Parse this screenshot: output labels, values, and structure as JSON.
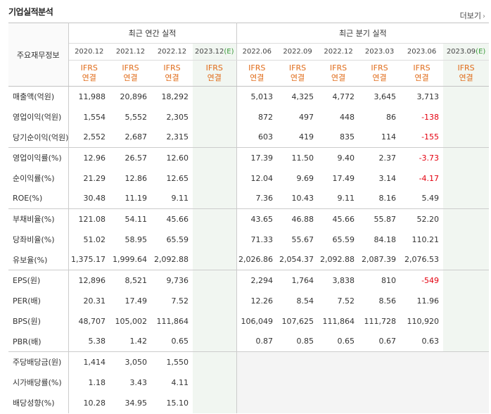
{
  "section_title": "기업실적분석",
  "more_link": "더보기",
  "row_header": "주요재무정보",
  "annual_group_label": "최근 연간 실적",
  "quarterly_group_label": "최근 분기 실적",
  "ifrs_label": "IFRS",
  "consolidated_label": "연결",
  "annual_periods": [
    {
      "label": "2020.12",
      "estimate": false
    },
    {
      "label": "2021.12",
      "estimate": false
    },
    {
      "label": "2022.12",
      "estimate": false
    },
    {
      "label": "2023.12",
      "estimate": true,
      "e_mark": "(E)"
    }
  ],
  "quarterly_periods": [
    {
      "label": "2022.06",
      "estimate": false
    },
    {
      "label": "2022.09",
      "estimate": false
    },
    {
      "label": "2022.12",
      "estimate": false
    },
    {
      "label": "2023.03",
      "estimate": false
    },
    {
      "label": "2023.06",
      "estimate": false
    },
    {
      "label": "2023.09",
      "estimate": true,
      "e_mark": "(E)"
    }
  ],
  "rows": [
    {
      "label": "매출액(억원)",
      "annual": [
        "11,988",
        "20,896",
        "18,292",
        ""
      ],
      "quarterly": [
        "5,013",
        "4,325",
        "4,772",
        "3,645",
        "3,713",
        ""
      ],
      "group_start": true
    },
    {
      "label": "영업이익(억원)",
      "annual": [
        "1,554",
        "5,552",
        "2,305",
        ""
      ],
      "quarterly": [
        "872",
        "497",
        "448",
        "86",
        "-138",
        ""
      ]
    },
    {
      "label": "당기순이익(억원)",
      "annual": [
        "2,552",
        "2,687",
        "2,315",
        ""
      ],
      "quarterly": [
        "603",
        "419",
        "835",
        "114",
        "-155",
        ""
      ]
    },
    {
      "label": "영업이익률(%)",
      "annual": [
        "12.96",
        "26.57",
        "12.60",
        ""
      ],
      "quarterly": [
        "17.39",
        "11.50",
        "9.40",
        "2.37",
        "-3.73",
        ""
      ],
      "group_start": true
    },
    {
      "label": "순이익률(%)",
      "annual": [
        "21.29",
        "12.86",
        "12.65",
        ""
      ],
      "quarterly": [
        "12.04",
        "9.69",
        "17.49",
        "3.14",
        "-4.17",
        ""
      ]
    },
    {
      "label": "ROE(%)",
      "annual": [
        "30.48",
        "11.19",
        "9.11",
        ""
      ],
      "quarterly": [
        "7.36",
        "10.43",
        "9.11",
        "8.16",
        "5.49",
        ""
      ]
    },
    {
      "label": "부채비율(%)",
      "annual": [
        "121.08",
        "54.11",
        "45.66",
        ""
      ],
      "quarterly": [
        "43.65",
        "46.88",
        "45.66",
        "55.87",
        "52.20",
        ""
      ],
      "group_start": true
    },
    {
      "label": "당좌비율(%)",
      "annual": [
        "51.02",
        "58.95",
        "65.59",
        ""
      ],
      "quarterly": [
        "71.33",
        "55.67",
        "65.59",
        "84.18",
        "110.21",
        ""
      ]
    },
    {
      "label": "유보율(%)",
      "annual": [
        "1,375.17",
        "1,999.64",
        "2,092.88",
        ""
      ],
      "quarterly": [
        "2,026.86",
        "2,054.37",
        "2,092.88",
        "2,087.39",
        "2,076.53",
        ""
      ]
    },
    {
      "label": "EPS(원)",
      "annual": [
        "12,896",
        "8,521",
        "9,736",
        ""
      ],
      "quarterly": [
        "2,294",
        "1,764",
        "3,838",
        "810",
        "-549",
        ""
      ],
      "group_start": true
    },
    {
      "label": "PER(배)",
      "annual": [
        "20.31",
        "17.49",
        "7.52",
        ""
      ],
      "quarterly": [
        "12.26",
        "8.54",
        "7.52",
        "8.56",
        "11.96",
        ""
      ]
    },
    {
      "label": "BPS(원)",
      "annual": [
        "48,707",
        "105,002",
        "111,864",
        ""
      ],
      "quarterly": [
        "106,049",
        "107,625",
        "111,864",
        "111,728",
        "110,920",
        ""
      ]
    },
    {
      "label": "PBR(배)",
      "annual": [
        "5.38",
        "1.42",
        "0.65",
        ""
      ],
      "quarterly": [
        "0.87",
        "0.85",
        "0.65",
        "0.67",
        "0.63",
        ""
      ]
    },
    {
      "label": "주당배당금(원)",
      "annual": [
        "1,414",
        "3,050",
        "1,550",
        ""
      ],
      "quarterly": null,
      "group_start": true
    },
    {
      "label": "시가배당률(%)",
      "annual": [
        "1.18",
        "3.43",
        "4.11",
        ""
      ],
      "quarterly": null
    },
    {
      "label": "배당성향(%)",
      "annual": [
        "10.28",
        "34.95",
        "15.10",
        ""
      ],
      "quarterly": null
    }
  ]
}
